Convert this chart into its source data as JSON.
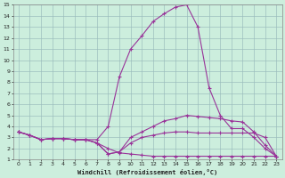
{
  "xlabel": "Windchill (Refroidissement éolien,°C)",
  "background_color": "#cceedd",
  "line_color": "#993399",
  "grid_color": "#99bbbb",
  "xlim": [
    -0.5,
    23.5
  ],
  "ylim": [
    1,
    15
  ],
  "xticks": [
    0,
    1,
    2,
    3,
    4,
    5,
    6,
    7,
    8,
    9,
    10,
    11,
    12,
    13,
    14,
    15,
    16,
    17,
    18,
    19,
    20,
    21,
    22,
    23
  ],
  "yticks": [
    1,
    2,
    3,
    4,
    5,
    6,
    7,
    8,
    9,
    10,
    11,
    12,
    13,
    14,
    15
  ],
  "line1_x": [
    0,
    1,
    2,
    3,
    4,
    5,
    6,
    7,
    8,
    9,
    10,
    11,
    12,
    13,
    14,
    15,
    16,
    17,
    18,
    19,
    20,
    21,
    22,
    23
  ],
  "line1_y": [
    3.5,
    3.2,
    2.8,
    2.9,
    2.9,
    2.8,
    2.8,
    2.5,
    2.0,
    1.6,
    1.5,
    1.4,
    1.3,
    1.3,
    1.3,
    1.3,
    1.3,
    1.3,
    1.3,
    1.3,
    1.3,
    1.3,
    1.3,
    1.3
  ],
  "line2_x": [
    0,
    1,
    2,
    3,
    4,
    5,
    6,
    7,
    8,
    9,
    10,
    11,
    12,
    13,
    14,
    15,
    16,
    17,
    18,
    19,
    20,
    21,
    22,
    23
  ],
  "line2_y": [
    3.5,
    3.2,
    2.8,
    2.9,
    2.9,
    2.8,
    2.8,
    2.8,
    4.0,
    8.5,
    11.0,
    12.2,
    13.5,
    14.2,
    14.8,
    15.0,
    13.0,
    7.5,
    5.0,
    3.8,
    3.8,
    3.0,
    2.0,
    1.3
  ],
  "line3_x": [
    0,
    1,
    2,
    3,
    4,
    5,
    6,
    7,
    8,
    9,
    10,
    11,
    12,
    13,
    14,
    15,
    16,
    17,
    18,
    19,
    20,
    21,
    22,
    23
  ],
  "line3_y": [
    3.5,
    3.2,
    2.8,
    2.9,
    2.9,
    2.8,
    2.8,
    2.5,
    1.5,
    1.7,
    3.0,
    3.5,
    4.0,
    4.5,
    4.7,
    5.0,
    4.9,
    4.8,
    4.7,
    4.5,
    4.4,
    3.5,
    2.3,
    1.3
  ],
  "line4_x": [
    0,
    1,
    2,
    3,
    4,
    5,
    6,
    7,
    8,
    9,
    10,
    11,
    12,
    13,
    14,
    15,
    16,
    17,
    18,
    19,
    20,
    21,
    22,
    23
  ],
  "line4_y": [
    3.5,
    3.2,
    2.8,
    2.9,
    2.9,
    2.8,
    2.8,
    2.5,
    1.5,
    1.7,
    2.5,
    3.0,
    3.2,
    3.4,
    3.5,
    3.5,
    3.4,
    3.4,
    3.4,
    3.4,
    3.4,
    3.4,
    3.0,
    1.3
  ]
}
